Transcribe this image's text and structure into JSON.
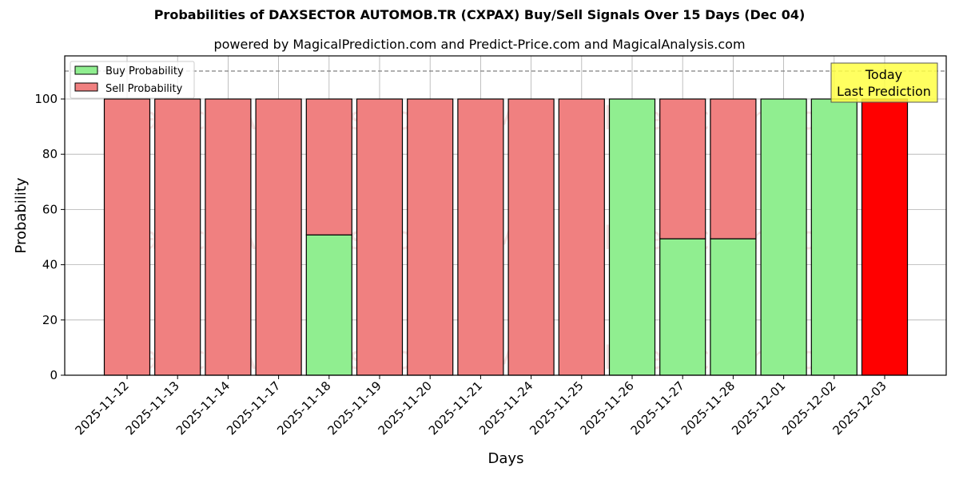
{
  "chart_data": {
    "type": "bar",
    "stacked": true,
    "title": "Probabilities of DAXSECTOR AUTOMOB.TR (CXPAX) Buy/Sell Signals Over 15 Days (Dec 04)",
    "subtitle": "powered by MagicalPrediction.com and Predict-Price.com and MagicalAnalysis.com",
    "xlabel": "Days",
    "ylabel": "Probability",
    "ylim": [
      0,
      115
    ],
    "yticks": [
      0,
      20,
      40,
      60,
      80,
      100
    ],
    "grid": true,
    "reference_line": {
      "y": 110,
      "style": "dashed",
      "color": "#808080"
    },
    "legend_position": "upper left",
    "categories": [
      "2025-11-12",
      "2025-11-13",
      "2025-11-14",
      "2025-11-17",
      "2025-11-18",
      "2025-11-19",
      "2025-11-20",
      "2025-11-21",
      "2025-11-24",
      "2025-11-25",
      "2025-11-26",
      "2025-11-27",
      "2025-11-28",
      "2025-12-01",
      "2025-12-02",
      "2025-12-03"
    ],
    "series": [
      {
        "name": "Buy Probability",
        "color": "#90ee90",
        "values": [
          0,
          0,
          0,
          0,
          50.8,
          0,
          0,
          0,
          0,
          0,
          100,
          49.4,
          49.4,
          100,
          100,
          0
        ]
      },
      {
        "name": "Sell Probability",
        "color": "#f08080",
        "values": [
          100,
          100,
          100,
          100,
          49.2,
          100,
          100,
          100,
          100,
          100,
          0,
          50.6,
          50.6,
          0,
          0,
          100
        ]
      }
    ],
    "highlight": {
      "index": 15,
      "color": "#ff0000",
      "label": "Sell Probability (last prediction)"
    },
    "annotation": {
      "line1": "Today",
      "line2": "Last Prediction",
      "background": "#ffff44"
    },
    "watermarks": [
      "MagicalAnalysis.com",
      "MagicalPrediction.com"
    ]
  },
  "legend": {
    "buy": "Buy Probability",
    "sell": "Sell Probability"
  }
}
